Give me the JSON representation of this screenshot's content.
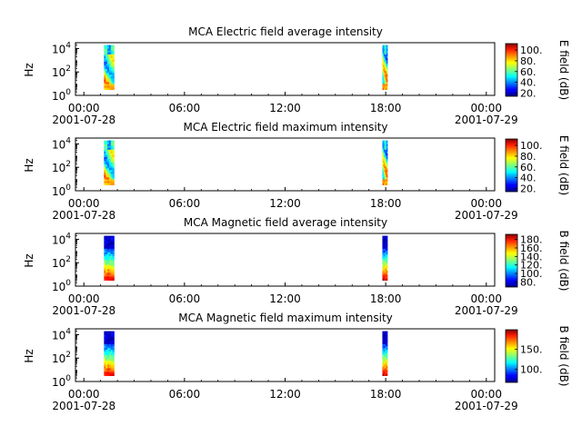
{
  "x_axis": {
    "ticks": [
      {
        "hour": 0,
        "label": "00:00",
        "date": "2001-07-28"
      },
      {
        "hour": 6,
        "label": "06:00",
        "date": ""
      },
      {
        "hour": 12,
        "label": "12:00",
        "date": ""
      },
      {
        "hour": 18,
        "label": "18:00",
        "date": ""
      },
      {
        "hour": 24,
        "label": "00:00",
        "date": "2001-07-29"
      }
    ],
    "range_hours": [
      -0.5,
      24.5
    ]
  },
  "chart_data": [
    {
      "type": "heatmap",
      "title": "MCA  Electric field average intensity",
      "ylabel": "Hz",
      "yscale": "log",
      "ylim_exp": [
        0,
        4.5
      ],
      "ytick_exps": [
        0,
        2,
        4
      ],
      "colorbar_label": "E field (dB)",
      "colorbar_range": [
        14,
        112
      ],
      "colorbar_ticks": [
        20,
        40,
        60,
        80,
        100
      ],
      "colorbar_tick_labels": [
        "20.",
        "40.",
        "60.",
        "80.",
        "100."
      ],
      "bursts": [
        {
          "start_hour": 1.2,
          "end_hour": 1.8,
          "freq_exp_range": [
            0.5,
            4.3
          ],
          "profile": "efield"
        },
        {
          "start_hour": 17.8,
          "end_hour": 18.1,
          "freq_exp_range": [
            0.5,
            4.3
          ],
          "profile": "efield"
        }
      ]
    },
    {
      "type": "heatmap",
      "title": "MCA  Electric field maximum intensity",
      "ylabel": "Hz",
      "yscale": "log",
      "ylim_exp": [
        0,
        4.5
      ],
      "ytick_exps": [
        0,
        2,
        4
      ],
      "colorbar_label": "E field (dB)",
      "colorbar_range": [
        14,
        112
      ],
      "colorbar_ticks": [
        20,
        40,
        60,
        80,
        100
      ],
      "colorbar_tick_labels": [
        "20.",
        "40.",
        "60.",
        "80.",
        "100."
      ],
      "bursts": [
        {
          "start_hour": 1.2,
          "end_hour": 1.8,
          "freq_exp_range": [
            0.5,
            4.3
          ],
          "profile": "efield"
        },
        {
          "start_hour": 17.8,
          "end_hour": 18.1,
          "freq_exp_range": [
            0.5,
            4.3
          ],
          "profile": "efield"
        }
      ]
    },
    {
      "type": "heatmap",
      "title": "MCA  Magnetic field average intensity",
      "ylabel": "Hz",
      "yscale": "log",
      "ylim_exp": [
        0,
        4.5
      ],
      "ytick_exps": [
        0,
        2,
        4
      ],
      "colorbar_label": "B field (dB)",
      "colorbar_range": [
        68,
        192
      ],
      "colorbar_ticks": [
        80,
        100,
        120,
        140,
        160,
        180
      ],
      "colorbar_tick_labels": [
        "80.",
        "100.",
        "120.",
        "140.",
        "160.",
        "180."
      ],
      "bursts": [
        {
          "start_hour": 1.2,
          "end_hour": 1.8,
          "freq_exp_range": [
            0.5,
            4.3
          ],
          "profile": "bfield"
        },
        {
          "start_hour": 17.8,
          "end_hour": 18.1,
          "freq_exp_range": [
            0.5,
            4.3
          ],
          "profile": "bfield"
        }
      ]
    },
    {
      "type": "heatmap",
      "title": "MCA  Magnetic field maximum intensity",
      "ylabel": "Hz",
      "yscale": "log",
      "ylim_exp": [
        0,
        4.5
      ],
      "ytick_exps": [
        0,
        2,
        4
      ],
      "colorbar_label": "B field (dB)",
      "colorbar_range": [
        68,
        198
      ],
      "colorbar_ticks": [
        100,
        150
      ],
      "colorbar_tick_labels": [
        "100.",
        "150."
      ],
      "bursts": [
        {
          "start_hour": 1.2,
          "end_hour": 1.8,
          "freq_exp_range": [
            0.5,
            4.3
          ],
          "profile": "bfield"
        },
        {
          "start_hour": 17.8,
          "end_hour": 18.1,
          "freq_exp_range": [
            0.5,
            4.3
          ],
          "profile": "bfield"
        }
      ]
    }
  ]
}
